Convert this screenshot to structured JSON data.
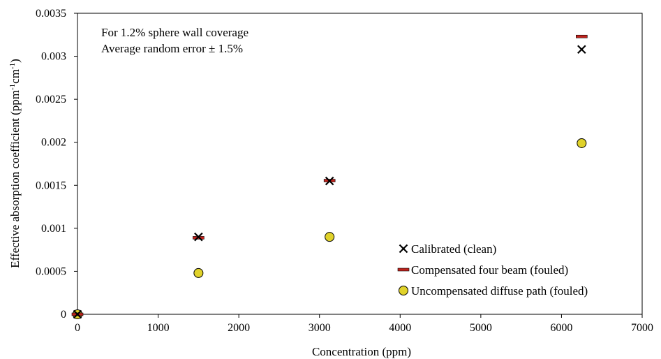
{
  "chart_data": {
    "type": "scatter",
    "title": "",
    "xlabel": "Concentration (ppm)",
    "ylabel": {
      "prefix": "Effective absorption coefficient (ppm",
      "exp1": "-1",
      "mid": "cm",
      "exp2": "-1",
      "suffix": ")"
    },
    "xlim": [
      0,
      7000
    ],
    "ylim": [
      0,
      0.0035
    ],
    "x_ticks": [
      0,
      1000,
      2000,
      3000,
      4000,
      5000,
      6000,
      7000
    ],
    "y_ticks": [
      0,
      0.0005,
      0.001,
      0.0015,
      0.002,
      0.0025,
      0.003,
      0.0035
    ],
    "grid": false,
    "legend_position": "bottom-right",
    "annotations": [
      "For 1.2% sphere wall coverage",
      "Average random error ± 1.5%"
    ],
    "series": [
      {
        "name": "Calibrated (clean)",
        "marker": "x",
        "color": "#000000",
        "points": [
          [
            0,
            0
          ],
          [
            1500,
            0.0009
          ],
          [
            3125,
            0.00155
          ],
          [
            6250,
            0.00308
          ]
        ]
      },
      {
        "name": "Compensated four beam (fouled)",
        "marker": "dash",
        "color": "#c0231d",
        "points": [
          [
            0,
            0
          ],
          [
            1500,
            0.00089
          ],
          [
            3125,
            0.001555
          ],
          [
            6250,
            0.00323
          ]
        ]
      },
      {
        "name": "Uncompensated diffuse path (fouled)",
        "marker": "circle",
        "color": "#e0d22a",
        "points": [
          [
            0,
            0
          ],
          [
            1500,
            0.00048
          ],
          [
            3125,
            0.0009
          ],
          [
            6250,
            0.00199
          ]
        ]
      }
    ]
  }
}
